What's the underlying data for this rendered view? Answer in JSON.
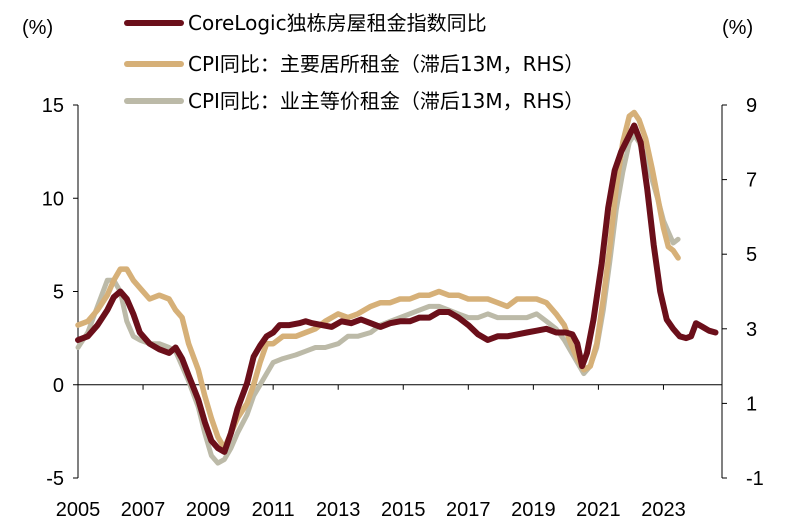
{
  "chart_data": {
    "type": "line",
    "title": "",
    "xlabel": "",
    "ylabel_left_unit": "(%)",
    "ylabel_right_unit": "(%)",
    "x_tick_labels": [
      "2005",
      "2007",
      "2009",
      "2011",
      "2013",
      "2015",
      "2017",
      "2019",
      "2021",
      "2023"
    ],
    "xlim": [
      2005,
      2024.8
    ],
    "y_left": {
      "ticks": [
        "15",
        "10",
        "5",
        "0",
        "-5"
      ],
      "lim": [
        -5,
        15
      ]
    },
    "y_right": {
      "ticks": [
        "9",
        "7",
        "5",
        "3",
        "1",
        "-1"
      ],
      "lim": [
        -1,
        9
      ]
    },
    "grid": false,
    "legend_position": "top",
    "series": [
      {
        "name": "CoreLogic独栋房屋租金指数同比",
        "axis": "left",
        "color": "#6b0f1a",
        "points": [
          [
            2005.0,
            2.4
          ],
          [
            2005.3,
            2.6
          ],
          [
            2005.6,
            3.2
          ],
          [
            2005.9,
            4.0
          ],
          [
            2006.1,
            4.7
          ],
          [
            2006.3,
            5.0
          ],
          [
            2006.5,
            4.6
          ],
          [
            2006.7,
            3.8
          ],
          [
            2006.9,
            2.8
          ],
          [
            2007.2,
            2.2
          ],
          [
            2007.5,
            1.9
          ],
          [
            2007.8,
            1.7
          ],
          [
            2008.0,
            2.0
          ],
          [
            2008.2,
            1.4
          ],
          [
            2008.4,
            0.5
          ],
          [
            2008.7,
            -0.8
          ],
          [
            2008.9,
            -2.0
          ],
          [
            2009.1,
            -3.0
          ],
          [
            2009.3,
            -3.4
          ],
          [
            2009.5,
            -3.6
          ],
          [
            2009.7,
            -2.6
          ],
          [
            2009.9,
            -1.3
          ],
          [
            2010.2,
            0.1
          ],
          [
            2010.4,
            1.5
          ],
          [
            2010.6,
            2.1
          ],
          [
            2010.8,
            2.6
          ],
          [
            2011.0,
            2.8
          ],
          [
            2011.2,
            3.2
          ],
          [
            2011.5,
            3.2
          ],
          [
            2011.8,
            3.3
          ],
          [
            2012.0,
            3.4
          ],
          [
            2012.2,
            3.3
          ],
          [
            2012.5,
            3.2
          ],
          [
            2012.8,
            3.1
          ],
          [
            2013.1,
            3.4
          ],
          [
            2013.4,
            3.3
          ],
          [
            2013.7,
            3.5
          ],
          [
            2014.0,
            3.3
          ],
          [
            2014.3,
            3.1
          ],
          [
            2014.6,
            3.3
          ],
          [
            2014.9,
            3.4
          ],
          [
            2015.2,
            3.4
          ],
          [
            2015.5,
            3.6
          ],
          [
            2015.8,
            3.6
          ],
          [
            2016.1,
            3.9
          ],
          [
            2016.4,
            3.9
          ],
          [
            2016.7,
            3.6
          ],
          [
            2017.0,
            3.2
          ],
          [
            2017.3,
            2.7
          ],
          [
            2017.6,
            2.4
          ],
          [
            2017.9,
            2.6
          ],
          [
            2018.2,
            2.6
          ],
          [
            2018.5,
            2.7
          ],
          [
            2018.8,
            2.8
          ],
          [
            2019.1,
            2.9
          ],
          [
            2019.4,
            3.0
          ],
          [
            2019.7,
            2.8
          ],
          [
            2020.0,
            2.8
          ],
          [
            2020.2,
            2.7
          ],
          [
            2020.35,
            2.2
          ],
          [
            2020.5,
            1.0
          ],
          [
            2020.65,
            1.7
          ],
          [
            2020.85,
            3.5
          ],
          [
            2021.1,
            6.5
          ],
          [
            2021.3,
            9.5
          ],
          [
            2021.5,
            11.5
          ],
          [
            2021.7,
            12.5
          ],
          [
            2021.9,
            13.2
          ],
          [
            2022.1,
            13.9
          ],
          [
            2022.3,
            13.0
          ],
          [
            2022.5,
            10.5
          ],
          [
            2022.7,
            7.5
          ],
          [
            2022.9,
            5.0
          ],
          [
            2023.1,
            3.5
          ],
          [
            2023.3,
            3.0
          ],
          [
            2023.5,
            2.6
          ],
          [
            2023.7,
            2.5
          ],
          [
            2023.85,
            2.6
          ],
          [
            2024.0,
            3.3
          ],
          [
            2024.2,
            3.1
          ],
          [
            2024.4,
            2.9
          ],
          [
            2024.6,
            2.8
          ]
        ]
      },
      {
        "name": "CPI同比：主要居所租金（滞后13M，RHS）",
        "axis": "right",
        "color": "#d6b078",
        "points": [
          [
            2005.0,
            3.1
          ],
          [
            2005.3,
            3.2
          ],
          [
            2005.6,
            3.5
          ],
          [
            2005.9,
            3.9
          ],
          [
            2006.1,
            4.3
          ],
          [
            2006.3,
            4.6
          ],
          [
            2006.5,
            4.6
          ],
          [
            2006.7,
            4.3
          ],
          [
            2006.9,
            4.1
          ],
          [
            2007.2,
            3.8
          ],
          [
            2007.5,
            3.9
          ],
          [
            2007.8,
            3.8
          ],
          [
            2008.0,
            3.5
          ],
          [
            2008.2,
            3.3
          ],
          [
            2008.4,
            2.6
          ],
          [
            2008.7,
            1.9
          ],
          [
            2008.9,
            1.2
          ],
          [
            2009.1,
            0.6
          ],
          [
            2009.3,
            0.1
          ],
          [
            2009.5,
            -0.2
          ],
          [
            2009.7,
            0.2
          ],
          [
            2009.9,
            0.6
          ],
          [
            2010.2,
            1.0
          ],
          [
            2010.4,
            1.5
          ],
          [
            2010.6,
            2.1
          ],
          [
            2010.8,
            2.6
          ],
          [
            2011.0,
            2.6
          ],
          [
            2011.3,
            2.8
          ],
          [
            2011.7,
            2.8
          ],
          [
            2012.0,
            2.9
          ],
          [
            2012.3,
            3.0
          ],
          [
            2012.6,
            3.2
          ],
          [
            2013.0,
            3.4
          ],
          [
            2013.3,
            3.3
          ],
          [
            2013.6,
            3.4
          ],
          [
            2014.0,
            3.6
          ],
          [
            2014.3,
            3.7
          ],
          [
            2014.6,
            3.7
          ],
          [
            2014.9,
            3.8
          ],
          [
            2015.2,
            3.8
          ],
          [
            2015.5,
            3.9
          ],
          [
            2015.8,
            3.9
          ],
          [
            2016.1,
            4.0
          ],
          [
            2016.4,
            3.9
          ],
          [
            2016.7,
            3.9
          ],
          [
            2017.0,
            3.8
          ],
          [
            2017.3,
            3.8
          ],
          [
            2017.6,
            3.8
          ],
          [
            2017.9,
            3.7
          ],
          [
            2018.2,
            3.6
          ],
          [
            2018.5,
            3.8
          ],
          [
            2018.8,
            3.8
          ],
          [
            2019.1,
            3.8
          ],
          [
            2019.4,
            3.7
          ],
          [
            2019.7,
            3.4
          ],
          [
            2019.95,
            3.1
          ],
          [
            2020.15,
            2.6
          ],
          [
            2020.35,
            2.2
          ],
          [
            2020.55,
            1.9
          ],
          [
            2020.75,
            2.0
          ],
          [
            2020.95,
            2.6
          ],
          [
            2021.15,
            3.8
          ],
          [
            2021.35,
            5.2
          ],
          [
            2021.55,
            6.8
          ],
          [
            2021.75,
            8.0
          ],
          [
            2021.95,
            8.7
          ],
          [
            2022.1,
            8.8
          ],
          [
            2022.25,
            8.6
          ],
          [
            2022.45,
            8.1
          ],
          [
            2022.65,
            7.3
          ],
          [
            2022.85,
            6.4
          ],
          [
            2023.0,
            5.7
          ],
          [
            2023.15,
            5.2
          ],
          [
            2023.3,
            5.1
          ],
          [
            2023.45,
            4.9
          ]
        ]
      },
      {
        "name": "CPI同比：业主等价租金（滞后13M，RHS）",
        "axis": "right",
        "color": "#bcbaa8",
        "points": [
          [
            2005.0,
            2.5
          ],
          [
            2005.3,
            2.9
          ],
          [
            2005.6,
            3.6
          ],
          [
            2005.9,
            4.3
          ],
          [
            2006.1,
            4.3
          ],
          [
            2006.3,
            4.0
          ],
          [
            2006.5,
            3.2
          ],
          [
            2006.7,
            2.8
          ],
          [
            2006.9,
            2.7
          ],
          [
            2007.2,
            2.6
          ],
          [
            2007.5,
            2.6
          ],
          [
            2007.8,
            2.5
          ],
          [
            2008.0,
            2.4
          ],
          [
            2008.2,
            2.0
          ],
          [
            2008.4,
            1.6
          ],
          [
            2008.7,
            0.9
          ],
          [
            2008.9,
            0.2
          ],
          [
            2009.1,
            -0.4
          ],
          [
            2009.3,
            -0.6
          ],
          [
            2009.5,
            -0.5
          ],
          [
            2009.7,
            -0.2
          ],
          [
            2009.9,
            0.2
          ],
          [
            2010.2,
            0.7
          ],
          [
            2010.4,
            1.2
          ],
          [
            2010.6,
            1.5
          ],
          [
            2010.8,
            1.8
          ],
          [
            2011.0,
            2.1
          ],
          [
            2011.3,
            2.2
          ],
          [
            2011.7,
            2.3
          ],
          [
            2012.0,
            2.4
          ],
          [
            2012.3,
            2.5
          ],
          [
            2012.6,
            2.5
          ],
          [
            2013.0,
            2.6
          ],
          [
            2013.3,
            2.8
          ],
          [
            2013.6,
            2.8
          ],
          [
            2014.0,
            2.9
          ],
          [
            2014.3,
            3.1
          ],
          [
            2014.6,
            3.2
          ],
          [
            2014.9,
            3.3
          ],
          [
            2015.2,
            3.4
          ],
          [
            2015.5,
            3.5
          ],
          [
            2015.8,
            3.6
          ],
          [
            2016.1,
            3.6
          ],
          [
            2016.4,
            3.5
          ],
          [
            2016.7,
            3.4
          ],
          [
            2017.0,
            3.3
          ],
          [
            2017.3,
            3.3
          ],
          [
            2017.6,
            3.4
          ],
          [
            2017.9,
            3.3
          ],
          [
            2018.2,
            3.3
          ],
          [
            2018.5,
            3.3
          ],
          [
            2018.8,
            3.3
          ],
          [
            2019.1,
            3.4
          ],
          [
            2019.4,
            3.2
          ],
          [
            2019.7,
            3.0
          ],
          [
            2019.95,
            2.7
          ],
          [
            2020.15,
            2.4
          ],
          [
            2020.35,
            2.1
          ],
          [
            2020.55,
            1.8
          ],
          [
            2020.75,
            2.0
          ],
          [
            2020.95,
            2.5
          ],
          [
            2021.15,
            3.5
          ],
          [
            2021.35,
            4.8
          ],
          [
            2021.55,
            6.2
          ],
          [
            2021.75,
            7.2
          ],
          [
            2021.95,
            8.0
          ],
          [
            2022.1,
            8.2
          ],
          [
            2022.25,
            8.0
          ],
          [
            2022.45,
            7.6
          ],
          [
            2022.65,
            7.0
          ],
          [
            2022.85,
            6.4
          ],
          [
            2023.0,
            5.9
          ],
          [
            2023.15,
            5.6
          ],
          [
            2023.3,
            5.3
          ],
          [
            2023.45,
            5.4
          ]
        ]
      }
    ]
  }
}
